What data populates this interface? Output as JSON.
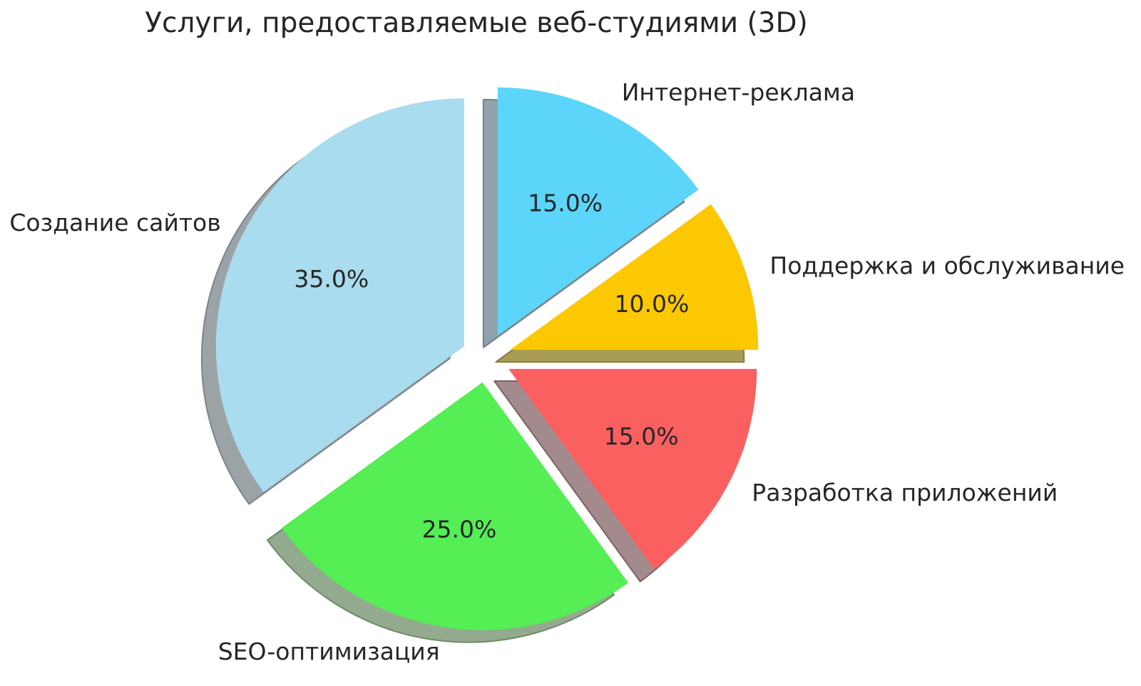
{
  "chart_data": {
    "type": "pie",
    "title": "Услуги, предоставляемые веб-студиями (3D)",
    "categories": [
      "Интернет-реклама",
      "Поддержка и обслуживание",
      "Разработка приложений",
      "SEO-оптимизация",
      "Создание сайтов"
    ],
    "values": [
      15.0,
      10.0,
      15.0,
      25.0,
      35.0
    ],
    "percent_labels": [
      "15.0%",
      "10.0%",
      "15.0%",
      "25.0%",
      "35.0%"
    ],
    "colors": [
      "#5BD5FA",
      "#FCC802",
      "#FA6060",
      "#55EE55",
      "#A8DCEE"
    ],
    "shadow_colors": [
      "#90A2AD",
      "#A99C55",
      "#A38A8C",
      "#94AA8E",
      "#9CA3A7"
    ],
    "shadow_edge_colors": [
      "#6E828E",
      "#8A7D3C",
      "#7E6163",
      "#6F8A68",
      "#7B858C"
    ],
    "start_angle_deg": 90,
    "clockwise": true,
    "explode": 0.1,
    "label_distance": 1.1,
    "pct_distance": 0.6,
    "shadow": true,
    "legend": "none",
    "background": "#FFFFFF",
    "text_color": "#262626"
  }
}
